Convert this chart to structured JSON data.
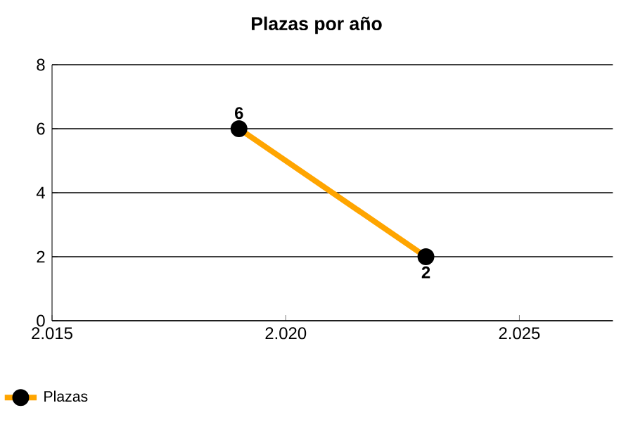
{
  "chart_data": {
    "type": "line",
    "title": "Plazas por año",
    "x": [
      2019,
      2023
    ],
    "series": [
      {
        "name": "Plazas",
        "color": "#ffa500",
        "values": [
          6,
          2
        ]
      }
    ],
    "xlim": [
      2015,
      2027
    ],
    "xticks": [
      {
        "value": 2015,
        "label": "2.015"
      },
      {
        "value": 2020,
        "label": "2.020"
      },
      {
        "value": 2025,
        "label": "2.025"
      }
    ],
    "ylim": [
      0,
      8
    ],
    "yticks": [
      0,
      2,
      4,
      6,
      8
    ],
    "grid": "y",
    "legend": "bottom left",
    "marker": "circle",
    "line_style": "solid",
    "data_labels": true
  }
}
